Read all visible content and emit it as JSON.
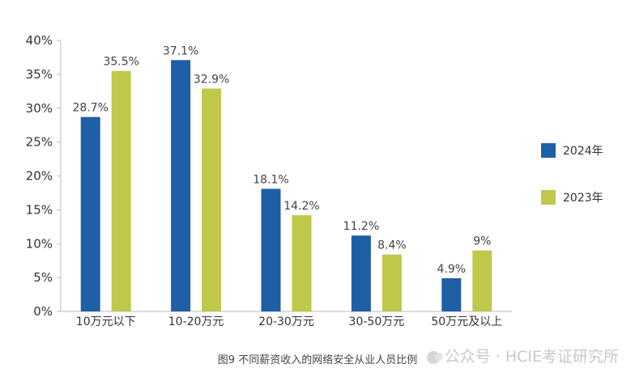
{
  "chart_data": {
    "type": "bar",
    "title": "",
    "xlabel": "",
    "ylabel": "",
    "ylim": [
      0,
      40
    ],
    "yticks": [
      0,
      5,
      10,
      15,
      20,
      25,
      30,
      35,
      40
    ],
    "ytick_labels": [
      "0%",
      "5%",
      "10%",
      "15%",
      "20%",
      "25%",
      "30%",
      "35%",
      "40%"
    ],
    "categories": [
      "10万元以下",
      "10-20万元",
      "20-30万元",
      "30-50万元",
      "50万元及以上"
    ],
    "series": [
      {
        "name": "2024年",
        "color": "#1f5fa6",
        "values": [
          28.7,
          37.1,
          18.1,
          11.2,
          4.9
        ],
        "labels": [
          "28.7%",
          "37.1%",
          "18.1%",
          "11.2%",
          "4.9%"
        ]
      },
      {
        "name": "2023年",
        "color": "#bfc84a",
        "values": [
          35.5,
          32.9,
          14.2,
          8.4,
          9
        ],
        "labels": [
          "35.5%",
          "32.9%",
          "14.2%",
          "8.4%",
          "9%"
        ]
      }
    ],
    "legend_position": "right",
    "grid": false
  },
  "caption": "图9 不同薪资收入的网络安全从业人员比例",
  "watermark": "公众号 · HCIE考证研究所"
}
